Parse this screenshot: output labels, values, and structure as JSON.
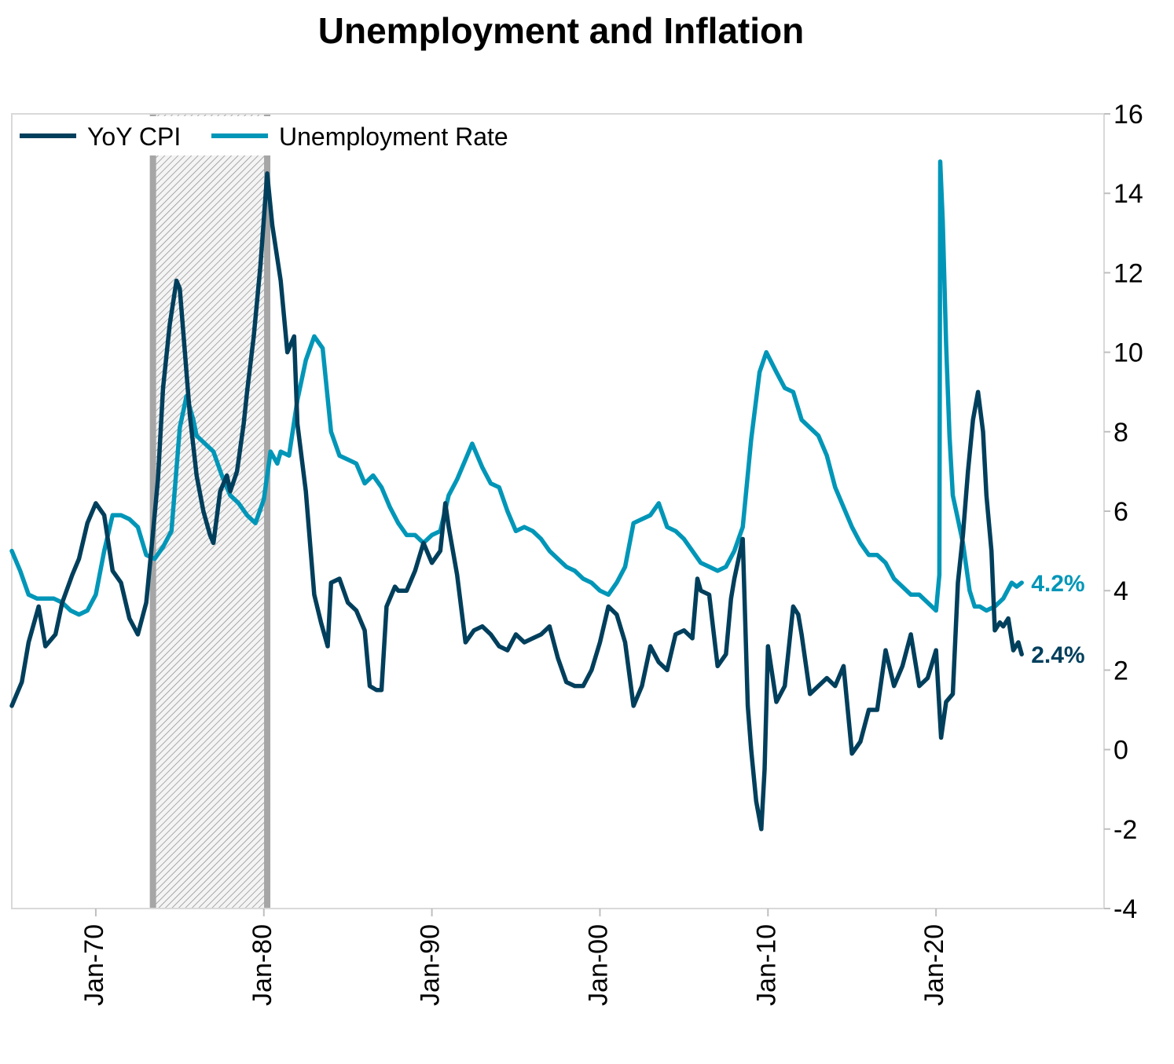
{
  "chart_data": {
    "type": "line",
    "title": "Unemployment and Inflation",
    "xlabel": "",
    "ylabel": "",
    "ylim": [
      -4,
      16
    ],
    "y_ticks": [
      -4,
      -2,
      0,
      2,
      4,
      6,
      8,
      10,
      12,
      14,
      16
    ],
    "x_range": [
      1965.0,
      2030.0
    ],
    "x_ticks": [
      {
        "x": 1970.0,
        "label": "Jan-70"
      },
      {
        "x": 1980.0,
        "label": "Jan-80"
      },
      {
        "x": 1990.0,
        "label": "Jan-90"
      },
      {
        "x": 2000.0,
        "label": "Jan-00"
      },
      {
        "x": 2010.0,
        "label": "Jan-10"
      },
      {
        "x": 2020.0,
        "label": "Jan-20"
      }
    ],
    "shaded_period": {
      "start": 1973.4,
      "end": 1980.2
    },
    "legend_position": "top-left",
    "series": [
      {
        "name": "YoY CPI",
        "color": "#003f5c",
        "end_label": "2.4%",
        "points": [
          [
            1965.0,
            1.1
          ],
          [
            1965.6,
            1.7
          ],
          [
            1966.0,
            2.7
          ],
          [
            1966.6,
            3.6
          ],
          [
            1967.0,
            2.6
          ],
          [
            1967.6,
            2.9
          ],
          [
            1968.0,
            3.7
          ],
          [
            1968.6,
            4.4
          ],
          [
            1969.0,
            4.8
          ],
          [
            1969.5,
            5.7
          ],
          [
            1970.0,
            6.2
          ],
          [
            1970.5,
            5.9
          ],
          [
            1971.0,
            4.5
          ],
          [
            1971.5,
            4.2
          ],
          [
            1972.0,
            3.3
          ],
          [
            1972.5,
            2.9
          ],
          [
            1973.0,
            3.7
          ],
          [
            1973.3,
            5.0
          ],
          [
            1973.7,
            6.8
          ],
          [
            1974.0,
            9.1
          ],
          [
            1974.4,
            10.7
          ],
          [
            1974.8,
            11.8
          ],
          [
            1975.0,
            11.6
          ],
          [
            1975.3,
            10.0
          ],
          [
            1975.6,
            8.4
          ],
          [
            1976.0,
            6.9
          ],
          [
            1976.4,
            6.0
          ],
          [
            1976.8,
            5.4
          ],
          [
            1977.0,
            5.2
          ],
          [
            1977.4,
            6.5
          ],
          [
            1977.8,
            6.9
          ],
          [
            1978.0,
            6.5
          ],
          [
            1978.4,
            7.0
          ],
          [
            1978.8,
            8.2
          ],
          [
            1979.0,
            9.0
          ],
          [
            1979.4,
            10.4
          ],
          [
            1979.8,
            12.2
          ],
          [
            1980.2,
            14.5
          ],
          [
            1980.5,
            13.2
          ],
          [
            1981.0,
            11.8
          ],
          [
            1981.4,
            10.0
          ],
          [
            1981.8,
            10.4
          ],
          [
            1982.0,
            8.2
          ],
          [
            1982.5,
            6.5
          ],
          [
            1983.0,
            3.9
          ],
          [
            1983.4,
            3.2
          ],
          [
            1983.8,
            2.6
          ],
          [
            1984.0,
            4.2
          ],
          [
            1984.5,
            4.3
          ],
          [
            1985.0,
            3.7
          ],
          [
            1985.5,
            3.5
          ],
          [
            1986.0,
            3.0
          ],
          [
            1986.3,
            1.6
          ],
          [
            1986.7,
            1.5
          ],
          [
            1987.0,
            1.5
          ],
          [
            1987.3,
            3.6
          ],
          [
            1987.8,
            4.1
          ],
          [
            1988.0,
            4.0
          ],
          [
            1988.5,
            4.0
          ],
          [
            1989.0,
            4.5
          ],
          [
            1989.5,
            5.2
          ],
          [
            1990.0,
            4.7
          ],
          [
            1990.5,
            5.0
          ],
          [
            1990.8,
            6.2
          ],
          [
            1991.0,
            5.6
          ],
          [
            1991.5,
            4.4
          ],
          [
            1992.0,
            2.7
          ],
          [
            1992.5,
            3.0
          ],
          [
            1993.0,
            3.1
          ],
          [
            1993.5,
            2.9
          ],
          [
            1994.0,
            2.6
          ],
          [
            1994.5,
            2.5
          ],
          [
            1995.0,
            2.9
          ],
          [
            1995.5,
            2.7
          ],
          [
            1996.0,
            2.8
          ],
          [
            1996.5,
            2.9
          ],
          [
            1997.0,
            3.1
          ],
          [
            1997.5,
            2.3
          ],
          [
            1998.0,
            1.7
          ],
          [
            1998.5,
            1.6
          ],
          [
            1999.0,
            1.6
          ],
          [
            1999.5,
            2.0
          ],
          [
            2000.0,
            2.7
          ],
          [
            2000.5,
            3.6
          ],
          [
            2001.0,
            3.4
          ],
          [
            2001.5,
            2.7
          ],
          [
            2002.0,
            1.1
          ],
          [
            2002.5,
            1.6
          ],
          [
            2003.0,
            2.6
          ],
          [
            2003.5,
            2.2
          ],
          [
            2004.0,
            2.0
          ],
          [
            2004.5,
            2.9
          ],
          [
            2005.0,
            3.0
          ],
          [
            2005.5,
            2.8
          ],
          [
            2005.8,
            4.3
          ],
          [
            2006.0,
            4.0
          ],
          [
            2006.5,
            3.9
          ],
          [
            2007.0,
            2.1
          ],
          [
            2007.5,
            2.4
          ],
          [
            2007.8,
            3.8
          ],
          [
            2008.0,
            4.3
          ],
          [
            2008.5,
            5.3
          ],
          [
            2008.8,
            1.1
          ],
          [
            2009.0,
            0.0
          ],
          [
            2009.3,
            -1.3
          ],
          [
            2009.6,
            -2.0
          ],
          [
            2009.8,
            -0.5
          ],
          [
            2010.0,
            2.6
          ],
          [
            2010.5,
            1.2
          ],
          [
            2011.0,
            1.6
          ],
          [
            2011.5,
            3.6
          ],
          [
            2011.8,
            3.4
          ],
          [
            2012.0,
            2.9
          ],
          [
            2012.5,
            1.4
          ],
          [
            2013.0,
            1.6
          ],
          [
            2013.5,
            1.8
          ],
          [
            2014.0,
            1.6
          ],
          [
            2014.5,
            2.1
          ],
          [
            2015.0,
            -0.1
          ],
          [
            2015.5,
            0.2
          ],
          [
            2016.0,
            1.0
          ],
          [
            2016.5,
            1.0
          ],
          [
            2017.0,
            2.5
          ],
          [
            2017.5,
            1.6
          ],
          [
            2018.0,
            2.1
          ],
          [
            2018.5,
            2.9
          ],
          [
            2019.0,
            1.6
          ],
          [
            2019.5,
            1.8
          ],
          [
            2020.0,
            2.5
          ],
          [
            2020.3,
            0.3
          ],
          [
            2020.6,
            1.2
          ],
          [
            2021.0,
            1.4
          ],
          [
            2021.3,
            4.2
          ],
          [
            2021.6,
            5.4
          ],
          [
            2021.9,
            7.0
          ],
          [
            2022.2,
            8.3
          ],
          [
            2022.5,
            9.0
          ],
          [
            2022.8,
            8.0
          ],
          [
            2023.0,
            6.4
          ],
          [
            2023.3,
            5.0
          ],
          [
            2023.5,
            3.0
          ],
          [
            2023.8,
            3.2
          ],
          [
            2024.0,
            3.1
          ],
          [
            2024.3,
            3.3
          ],
          [
            2024.6,
            2.5
          ],
          [
            2024.9,
            2.7
          ],
          [
            2025.1,
            2.4
          ]
        ]
      },
      {
        "name": "Unemployment Rate",
        "color": "#0096b8",
        "end_label": "4.2%",
        "points": [
          [
            1965.0,
            5.0
          ],
          [
            1965.5,
            4.5
          ],
          [
            1966.0,
            3.9
          ],
          [
            1966.5,
            3.8
          ],
          [
            1967.0,
            3.8
          ],
          [
            1967.5,
            3.8
          ],
          [
            1968.0,
            3.7
          ],
          [
            1968.5,
            3.5
          ],
          [
            1969.0,
            3.4
          ],
          [
            1969.5,
            3.5
          ],
          [
            1970.0,
            3.9
          ],
          [
            1970.5,
            5.0
          ],
          [
            1971.0,
            5.9
          ],
          [
            1971.5,
            5.9
          ],
          [
            1972.0,
            5.8
          ],
          [
            1972.5,
            5.6
          ],
          [
            1973.0,
            4.9
          ],
          [
            1973.5,
            4.8
          ],
          [
            1974.0,
            5.1
          ],
          [
            1974.5,
            5.5
          ],
          [
            1975.0,
            8.1
          ],
          [
            1975.4,
            8.9
          ],
          [
            1975.8,
            8.3
          ],
          [
            1976.0,
            7.9
          ],
          [
            1976.5,
            7.7
          ],
          [
            1977.0,
            7.5
          ],
          [
            1977.5,
            6.9
          ],
          [
            1978.0,
            6.4
          ],
          [
            1978.5,
            6.2
          ],
          [
            1979.0,
            5.9
          ],
          [
            1979.5,
            5.7
          ],
          [
            1980.0,
            6.3
          ],
          [
            1980.4,
            7.5
          ],
          [
            1980.8,
            7.2
          ],
          [
            1981.0,
            7.5
          ],
          [
            1981.5,
            7.4
          ],
          [
            1982.0,
            8.8
          ],
          [
            1982.5,
            9.8
          ],
          [
            1983.0,
            10.4
          ],
          [
            1983.5,
            10.1
          ],
          [
            1984.0,
            8.0
          ],
          [
            1984.5,
            7.4
          ],
          [
            1985.0,
            7.3
          ],
          [
            1985.5,
            7.2
          ],
          [
            1986.0,
            6.7
          ],
          [
            1986.5,
            6.9
          ],
          [
            1987.0,
            6.6
          ],
          [
            1987.5,
            6.1
          ],
          [
            1988.0,
            5.7
          ],
          [
            1988.5,
            5.4
          ],
          [
            1989.0,
            5.4
          ],
          [
            1989.5,
            5.2
          ],
          [
            1990.0,
            5.4
          ],
          [
            1990.5,
            5.5
          ],
          [
            1991.0,
            6.4
          ],
          [
            1991.5,
            6.8
          ],
          [
            1992.0,
            7.3
          ],
          [
            1992.4,
            7.7
          ],
          [
            1992.8,
            7.3
          ],
          [
            1993.0,
            7.1
          ],
          [
            1993.5,
            6.7
          ],
          [
            1994.0,
            6.6
          ],
          [
            1994.5,
            6.0
          ],
          [
            1995.0,
            5.5
          ],
          [
            1995.5,
            5.6
          ],
          [
            1996.0,
            5.5
          ],
          [
            1996.5,
            5.3
          ],
          [
            1997.0,
            5.0
          ],
          [
            1997.5,
            4.8
          ],
          [
            1998.0,
            4.6
          ],
          [
            1998.5,
            4.5
          ],
          [
            1999.0,
            4.3
          ],
          [
            1999.5,
            4.2
          ],
          [
            2000.0,
            4.0
          ],
          [
            2000.5,
            3.9
          ],
          [
            2001.0,
            4.2
          ],
          [
            2001.5,
            4.6
          ],
          [
            2002.0,
            5.7
          ],
          [
            2002.5,
            5.8
          ],
          [
            2003.0,
            5.9
          ],
          [
            2003.5,
            6.2
          ],
          [
            2004.0,
            5.6
          ],
          [
            2004.5,
            5.5
          ],
          [
            2005.0,
            5.3
          ],
          [
            2005.5,
            5.0
          ],
          [
            2006.0,
            4.7
          ],
          [
            2006.5,
            4.6
          ],
          [
            2007.0,
            4.5
          ],
          [
            2007.5,
            4.6
          ],
          [
            2008.0,
            5.0
          ],
          [
            2008.5,
            5.6
          ],
          [
            2009.0,
            7.8
          ],
          [
            2009.5,
            9.5
          ],
          [
            2009.9,
            10.0
          ],
          [
            2010.5,
            9.5
          ],
          [
            2011.0,
            9.1
          ],
          [
            2011.5,
            9.0
          ],
          [
            2012.0,
            8.3
          ],
          [
            2012.5,
            8.1
          ],
          [
            2013.0,
            7.9
          ],
          [
            2013.5,
            7.4
          ],
          [
            2014.0,
            6.6
          ],
          [
            2014.5,
            6.1
          ],
          [
            2015.0,
            5.6
          ],
          [
            2015.5,
            5.2
          ],
          [
            2016.0,
            4.9
          ],
          [
            2016.5,
            4.9
          ],
          [
            2017.0,
            4.7
          ],
          [
            2017.5,
            4.3
          ],
          [
            2018.0,
            4.1
          ],
          [
            2018.5,
            3.9
          ],
          [
            2019.0,
            3.9
          ],
          [
            2019.5,
            3.7
          ],
          [
            2020.0,
            3.5
          ],
          [
            2020.2,
            4.4
          ],
          [
            2020.25,
            14.8
          ],
          [
            2020.4,
            13.3
          ],
          [
            2020.6,
            10.2
          ],
          [
            2020.8,
            7.9
          ],
          [
            2021.0,
            6.4
          ],
          [
            2021.3,
            5.8
          ],
          [
            2021.6,
            5.2
          ],
          [
            2021.9,
            4.3
          ],
          [
            2022.0,
            4.0
          ],
          [
            2022.3,
            3.6
          ],
          [
            2022.6,
            3.6
          ],
          [
            2023.0,
            3.5
          ],
          [
            2023.5,
            3.6
          ],
          [
            2024.0,
            3.8
          ],
          [
            2024.5,
            4.2
          ],
          [
            2024.8,
            4.1
          ],
          [
            2025.1,
            4.2
          ]
        ]
      }
    ]
  }
}
